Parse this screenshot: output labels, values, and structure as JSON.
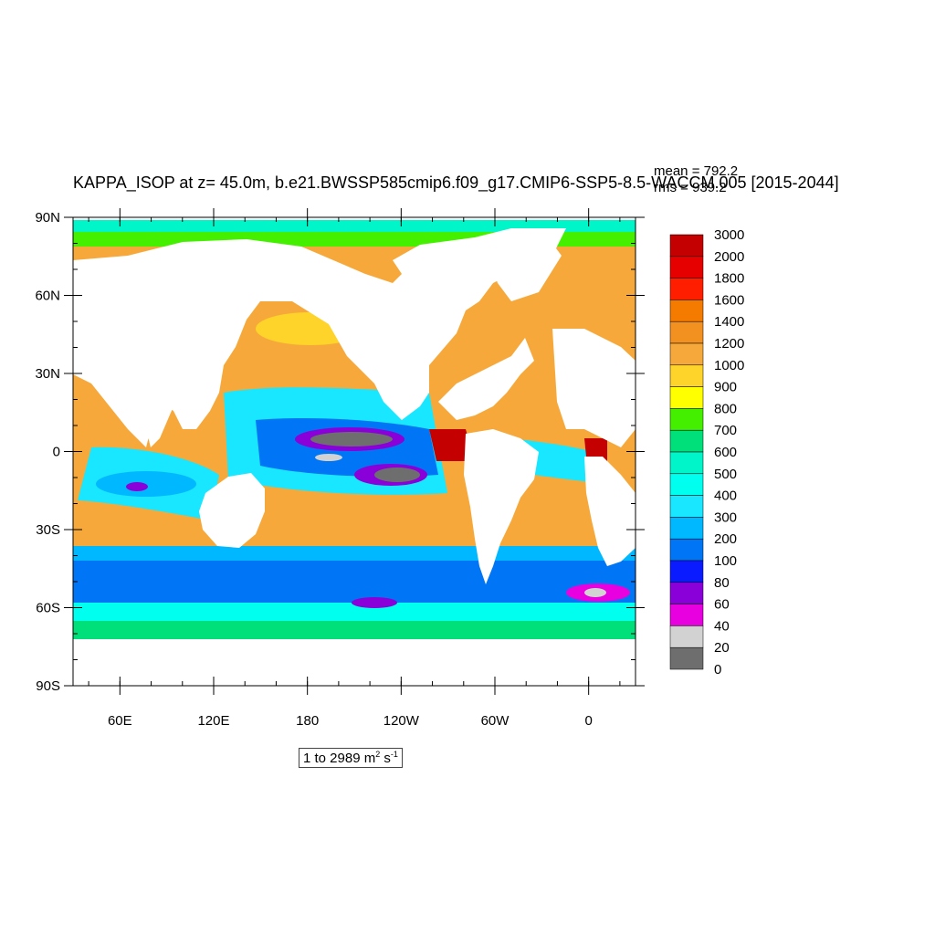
{
  "title": "KAPPA_ISOP at z=  45.0m, b.e21.BWSSP585cmip6.f09_g17.CMIP6-SSP5-8.5-WACCM.005 [2015-2044]",
  "stats": {
    "mean": "mean = 792.2",
    "rms": "rms = 939.2"
  },
  "units": {
    "prefix": "1 to 2989 m",
    "exp1": "2",
    "mid": " s",
    "exp2": "-1"
  },
  "axes": {
    "lat_labels": [
      "90N",
      "60N",
      "30N",
      "0",
      "30S",
      "60S",
      "90S"
    ],
    "lon_labels": [
      "60E",
      "120E",
      "180",
      "120W",
      "60W",
      "0"
    ]
  },
  "colorbar": {
    "levels": [
      "3000",
      "2000",
      "1800",
      "1600",
      "1400",
      "1200",
      "1000",
      "900",
      "800",
      "700",
      "600",
      "500",
      "400",
      "300",
      "200",
      "100",
      "80",
      "60",
      "40",
      "20",
      "0"
    ],
    "colors": [
      "#c40000",
      "#e60000",
      "#ff1e00",
      "#f57a00",
      "#f29020",
      "#f6a93a",
      "#ffd42a",
      "#ffff00",
      "#44f000",
      "#00e07a",
      "#00f5c8",
      "#00ffee",
      "#19e6ff",
      "#00b8ff",
      "#0075f5",
      "#0a1cff",
      "#8a00d8",
      "#e800e0",
      "#d2d2d2",
      "#6e6e6e"
    ]
  },
  "map_colors": {
    "land": "#ffffff",
    "ocean_base": "#f6a93a",
    "southern_ocean": "#0075f5",
    "antarctic_coast": "#00e07a",
    "arctic": "#00f5c8",
    "equatorial": "#19e6ff",
    "eastern_boundary": "#c40000",
    "gray": "#6e6e6e",
    "purple": "#8a00d8"
  }
}
